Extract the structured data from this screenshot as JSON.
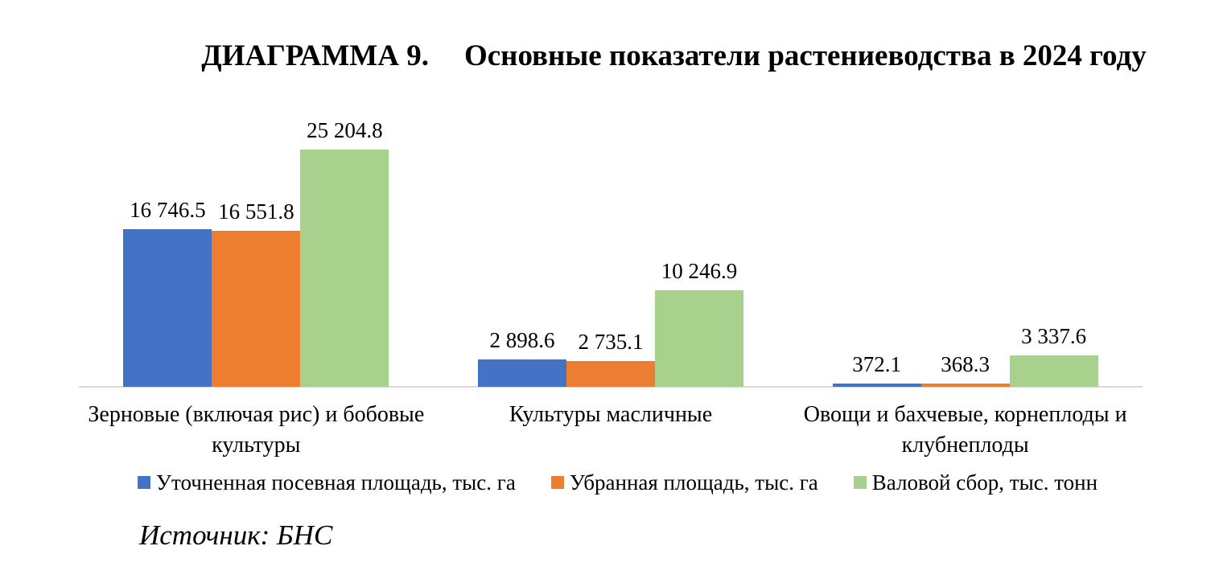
{
  "header": {
    "title_prefix": "ДИАГРАММА 9.",
    "title_text": "Основные показатели растениеводства в 2024 году"
  },
  "chart_data": {
    "type": "bar",
    "title": "ДИАГРАММА 9. Основные показатели растениеводства в 2024 году",
    "categories": [
      "Зерновые (включая рис) и бобовые культуры",
      "Культуры масличные",
      "Овощи и бахчевые, корнеплоды и клубнеплоды"
    ],
    "category_label_lines": [
      [
        "Зерновые (включая рис) и бобовые",
        "культуры"
      ],
      [
        "Культуры масличные"
      ],
      [
        "Овощи и бахчевые, корнеплоды и",
        "клубнеплоды"
      ]
    ],
    "series": [
      {
        "name": "Уточненная посевная площадь, тыс. га",
        "color": "#4472C4",
        "values": [
          16746.5,
          2898.6,
          372.1
        ],
        "value_labels": [
          "16 746.5",
          "2 898.6",
          "372.1"
        ]
      },
      {
        "name": "Убранная площадь, тыс. га",
        "color": "#ED7D31",
        "values": [
          16551.8,
          2735.1,
          368.3
        ],
        "value_labels": [
          "16 551.8",
          "2 735.1",
          "368.3"
        ]
      },
      {
        "name": "Валовой сбор, тыс. тонн",
        "color": "#A9D18E",
        "values": [
          25204.8,
          10246.9,
          3337.6
        ],
        "value_labels": [
          "25 204.8",
          "10 246.9",
          "3 337.6"
        ]
      }
    ],
    "xlabel": "",
    "ylabel": "",
    "ylim": [
      0,
      26000
    ],
    "grid": false,
    "y_axis_visible": false,
    "legend_position": "bottom",
    "axis_line_color": "#D9D9D9",
    "value_label_position": "outside-end"
  },
  "footer": {
    "source": "Источник: БНС"
  }
}
